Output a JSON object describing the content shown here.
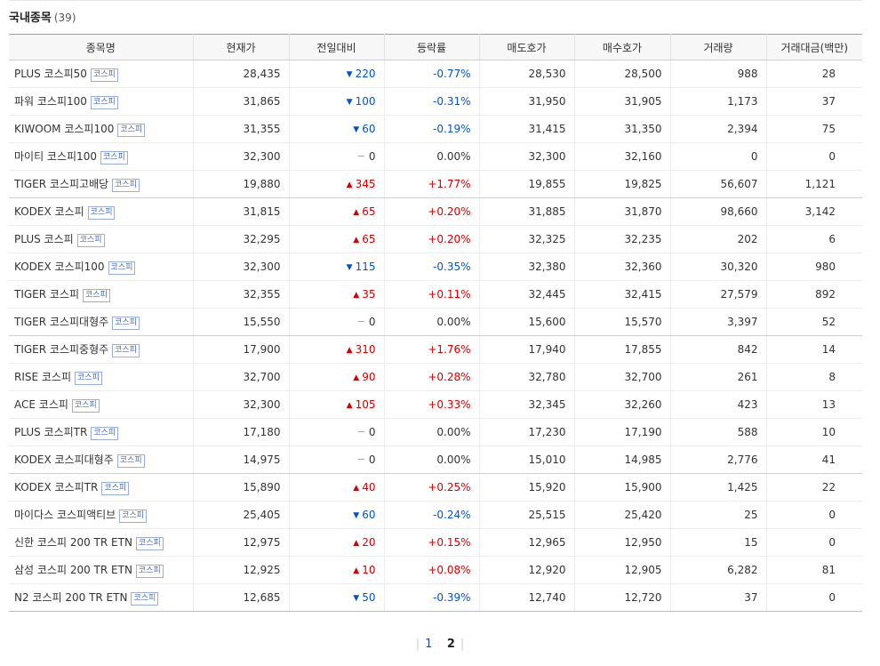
{
  "section": {
    "title": "국내종목",
    "count": "(39)"
  },
  "columns": [
    "종목명",
    "현재가",
    "전일대비",
    "등락률",
    "매도호가",
    "매수호가",
    "거래량",
    "거래대금(백만)"
  ],
  "market_badge_label": "코스피",
  "colors": {
    "up": "#d60000",
    "down": "#0055cc",
    "flat": "#333333"
  },
  "rows": [
    {
      "name": "PLUS 코스피50",
      "price": "28,435",
      "dir": "down",
      "change": "220",
      "rate": "-0.77%",
      "ask": "28,530",
      "bid": "28,500",
      "volume": "988",
      "amount": "28"
    },
    {
      "name": "파워 코스피100",
      "price": "31,865",
      "dir": "down",
      "change": "100",
      "rate": "-0.31%",
      "ask": "31,950",
      "bid": "31,905",
      "volume": "1,173",
      "amount": "37"
    },
    {
      "name": "KIWOOM 코스피100",
      "price": "31,355",
      "dir": "down",
      "change": "60",
      "rate": "-0.19%",
      "ask": "31,415",
      "bid": "31,350",
      "volume": "2,394",
      "amount": "75"
    },
    {
      "name": "마이티 코스피100",
      "price": "32,300",
      "dir": "flat",
      "change": "0",
      "rate": "0.00%",
      "ask": "32,300",
      "bid": "32,160",
      "volume": "0",
      "amount": "0"
    },
    {
      "name": "TIGER 코스피고배당",
      "price": "19,880",
      "dir": "up",
      "change": "345",
      "rate": "+1.77%",
      "ask": "19,855",
      "bid": "19,825",
      "volume": "56,607",
      "amount": "1,121"
    },
    {
      "name": "KODEX 코스피",
      "price": "31,815",
      "dir": "up",
      "change": "65",
      "rate": "+0.20%",
      "ask": "31,885",
      "bid": "31,870",
      "volume": "98,660",
      "amount": "3,142"
    },
    {
      "name": "PLUS 코스피",
      "price": "32,295",
      "dir": "up",
      "change": "65",
      "rate": "+0.20%",
      "ask": "32,325",
      "bid": "32,235",
      "volume": "202",
      "amount": "6"
    },
    {
      "name": "KODEX 코스피100",
      "price": "32,300",
      "dir": "down",
      "change": "115",
      "rate": "-0.35%",
      "ask": "32,380",
      "bid": "32,360",
      "volume": "30,320",
      "amount": "980"
    },
    {
      "name": "TIGER 코스피",
      "price": "32,355",
      "dir": "up",
      "change": "35",
      "rate": "+0.11%",
      "ask": "32,445",
      "bid": "32,415",
      "volume": "27,579",
      "amount": "892"
    },
    {
      "name": "TIGER 코스피대형주",
      "price": "15,550",
      "dir": "flat",
      "change": "0",
      "rate": "0.00%",
      "ask": "15,600",
      "bid": "15,570",
      "volume": "3,397",
      "amount": "52"
    },
    {
      "name": "TIGER 코스피중형주",
      "price": "17,900",
      "dir": "up",
      "change": "310",
      "rate": "+1.76%",
      "ask": "17,940",
      "bid": "17,855",
      "volume": "842",
      "amount": "14"
    },
    {
      "name": "RISE 코스피",
      "price": "32,700",
      "dir": "up",
      "change": "90",
      "rate": "+0.28%",
      "ask": "32,780",
      "bid": "32,700",
      "volume": "261",
      "amount": "8"
    },
    {
      "name": "ACE 코스피",
      "price": "32,300",
      "dir": "up",
      "change": "105",
      "rate": "+0.33%",
      "ask": "32,345",
      "bid": "32,260",
      "volume": "423",
      "amount": "13"
    },
    {
      "name": "PLUS 코스피TR",
      "price": "17,180",
      "dir": "flat",
      "change": "0",
      "rate": "0.00%",
      "ask": "17,230",
      "bid": "17,190",
      "volume": "588",
      "amount": "10"
    },
    {
      "name": "KODEX 코스피대형주",
      "price": "14,975",
      "dir": "flat",
      "change": "0",
      "rate": "0.00%",
      "ask": "15,010",
      "bid": "14,985",
      "volume": "2,776",
      "amount": "41"
    },
    {
      "name": "KODEX 코스피TR",
      "price": "15,890",
      "dir": "up",
      "change": "40",
      "rate": "+0.25%",
      "ask": "15,920",
      "bid": "15,900",
      "volume": "1,425",
      "amount": "22"
    },
    {
      "name": "마이다스 코스피액티브",
      "price": "25,405",
      "dir": "down",
      "change": "60",
      "rate": "-0.24%",
      "ask": "25,515",
      "bid": "25,420",
      "volume": "25",
      "amount": "0"
    },
    {
      "name": "신한 코스피 200 TR ETN",
      "price": "12,975",
      "dir": "up",
      "change": "20",
      "rate": "+0.15%",
      "ask": "12,965",
      "bid": "12,950",
      "volume": "15",
      "amount": "0"
    },
    {
      "name": "삼성 코스피 200 TR ETN",
      "price": "12,925",
      "dir": "up",
      "change": "10",
      "rate": "+0.08%",
      "ask": "12,920",
      "bid": "12,905",
      "volume": "6,282",
      "amount": "81"
    },
    {
      "name": "N2 코스피 200 TR ETN",
      "price": "12,685",
      "dir": "down",
      "change": "50",
      "rate": "-0.39%",
      "ask": "12,740",
      "bid": "12,720",
      "volume": "37",
      "amount": "0"
    }
  ],
  "pagination": {
    "pages": [
      "1",
      "2"
    ],
    "current": "2"
  }
}
